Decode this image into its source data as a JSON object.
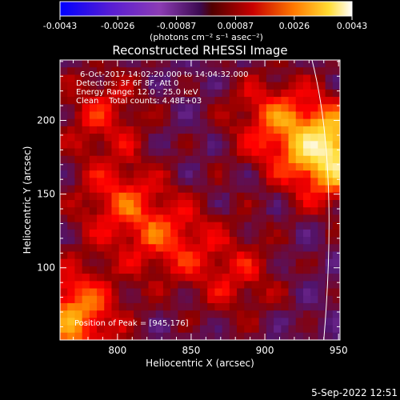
{
  "colorbar": {
    "min_label": "-0.0043",
    "tick_labels": [
      "-0.0043",
      "-0.0026",
      "-0.00087",
      "0.00087",
      "0.0026",
      "0.0043"
    ],
    "ticks": [
      -0.0043,
      -0.0026,
      -0.00087,
      0.00087,
      0.0026,
      0.0043
    ],
    "range": [
      -0.0043,
      0.0043
    ],
    "units": "(photons cm⁻² s⁻¹ asec⁻²)",
    "colormap": [
      "#0000ff",
      "#5a1ed2",
      "#8c3cb4",
      "#50146e",
      "#8c0000",
      "#ff0000",
      "#ff9600",
      "#ffdc32",
      "#ffffff"
    ]
  },
  "chart_data": {
    "type": "heatmap",
    "title": "Reconstructed RHESSI Image",
    "xlabel": "Heliocentric X (arcsec)",
    "ylabel": "Heliocentric Y (arcsec)",
    "x_ticks": [
      800,
      850,
      900,
      950
    ],
    "y_ticks": [
      100,
      150,
      200
    ],
    "xlim": [
      761,
      951
    ],
    "ylim": [
      51,
      241
    ],
    "info_lines": [
      "6-Oct-2017 14:02:20.000 to 14:04:32.000",
      "Detectors: 3F 6F 8F, Att 0",
      "Energy Range: 12.0 - 25.0 keV",
      "Clean    Total counts: 4.48E+03"
    ],
    "peak_label": "Position of Peak = [945,176]",
    "peak_position": [
      945,
      176
    ],
    "limb_contour": true,
    "sources": [
      {
        "x": 945,
        "y": 178,
        "intensity": 0.0043
      },
      {
        "x": 770,
        "y": 68,
        "intensity": 0.003
      },
      {
        "x": 800,
        "y": 145,
        "intensity": 0.0018
      },
      {
        "x": 835,
        "y": 120,
        "intensity": 0.0018
      },
      {
        "x": 905,
        "y": 200,
        "intensity": 0.002
      },
      {
        "x": 790,
        "y": 205,
        "intensity": 0.0016
      },
      {
        "x": 880,
        "y": 95,
        "intensity": 0.0015
      }
    ]
  },
  "footer": {
    "timestamp": "5-Sep-2022 12:51"
  }
}
